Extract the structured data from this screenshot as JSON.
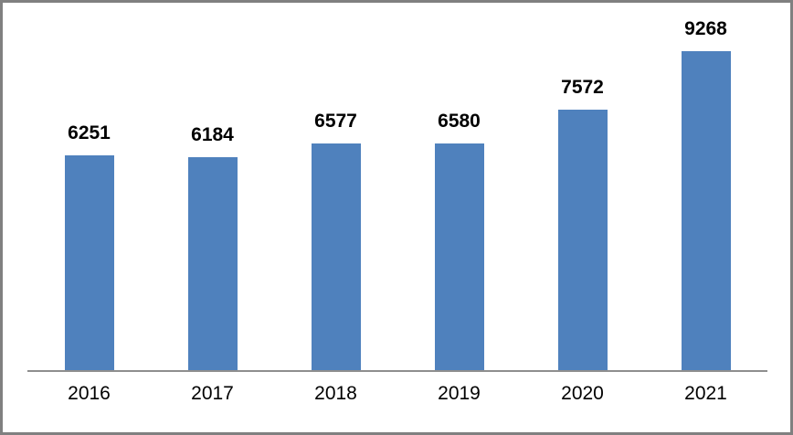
{
  "chart_data": {
    "type": "bar",
    "categories": [
      "2016",
      "2017",
      "2018",
      "2019",
      "2020",
      "2021"
    ],
    "values": [
      6251,
      6184,
      6577,
      6580,
      7572,
      9268
    ],
    "title": "",
    "xlabel": "",
    "ylabel": "",
    "ylim": [
      0,
      9800
    ],
    "grid": false,
    "legend": false,
    "data_labels": true,
    "bar_color": "#4f81bd",
    "axis_line_color": "#8e8e8e",
    "frame_border_color": "#808080",
    "label_color": "#000000"
  }
}
